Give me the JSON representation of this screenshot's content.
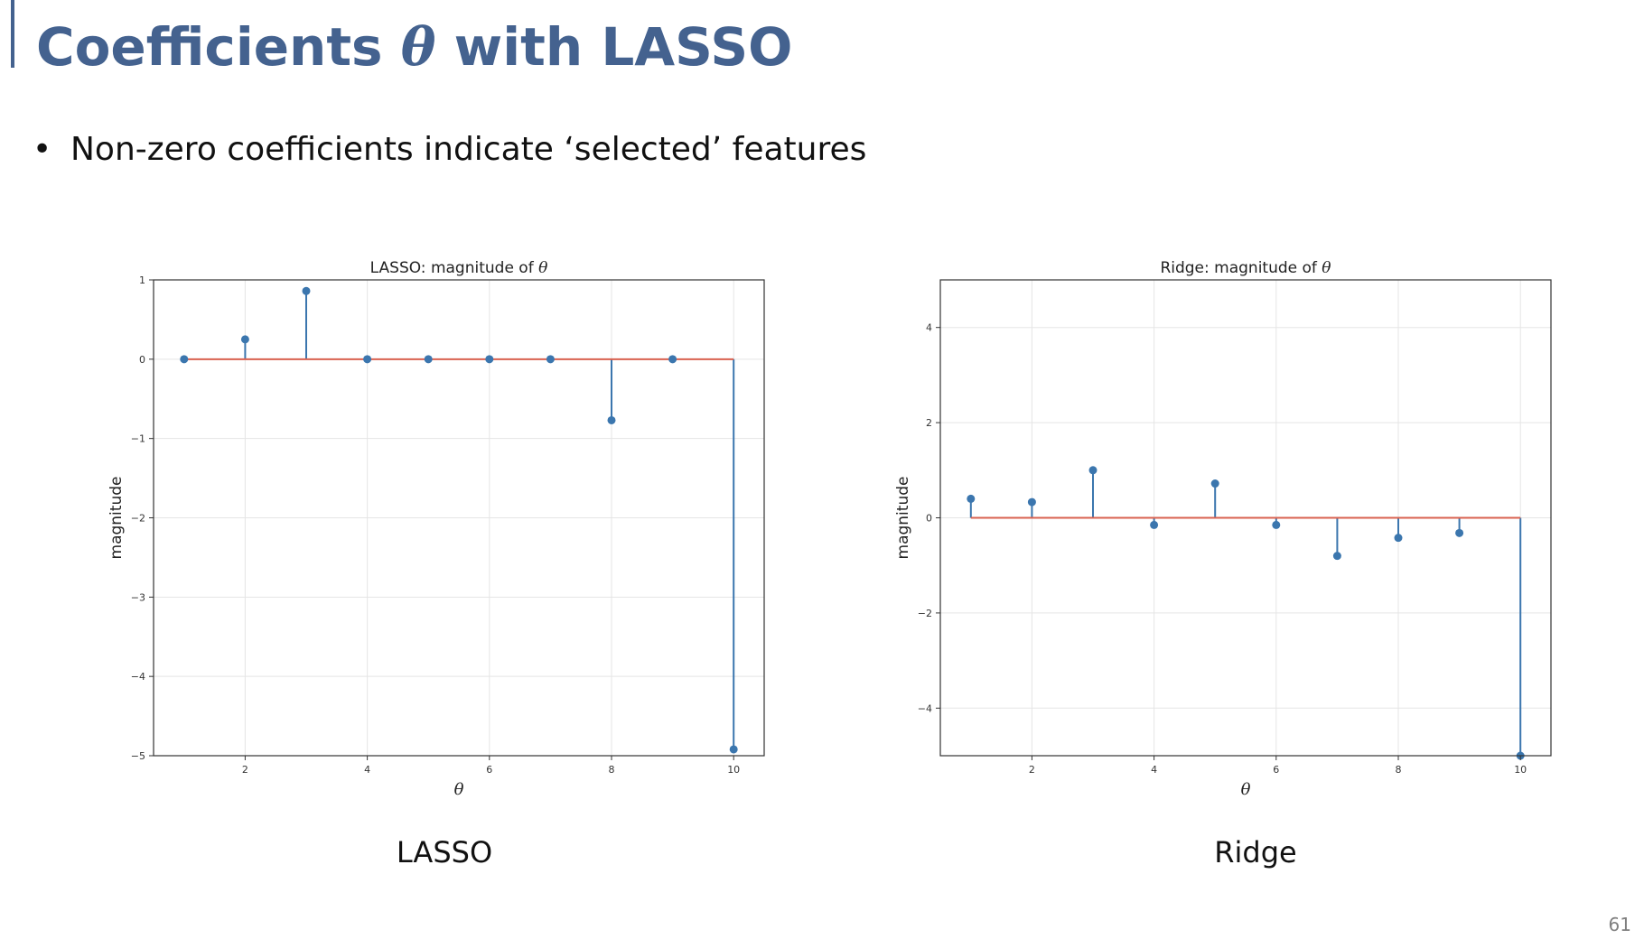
{
  "slide": {
    "title_prefix": "Coefficients ",
    "title_symbol": "θ",
    "title_suffix": " with LASSO",
    "bullet_symbol": "•",
    "bullet": "Non-zero coefficients indicate ‘selected’ features",
    "page_number": "61",
    "colors": {
      "title": "#44628f",
      "stem": "#3b76ae",
      "baseline": "#d9614f",
      "grid": "#e5e5e5"
    }
  },
  "chart_data": [
    {
      "type": "stem",
      "caption": "LASSO",
      "title_prefix": "LASSO: magnitude of ",
      "title_symbol": "θ",
      "xlabel": "θ",
      "ylabel": "magnitude",
      "x": [
        1,
        2,
        3,
        4,
        5,
        6,
        7,
        8,
        9,
        10
      ],
      "values": [
        0,
        0.25,
        0.86,
        0,
        0,
        0,
        0,
        -0.77,
        0,
        -4.92
      ],
      "xlim": [
        0.5,
        10.5
      ],
      "ylim": [
        -5,
        1
      ],
      "xticks": [
        "2",
        "4",
        "6",
        "8",
        "10"
      ],
      "yticks": [
        "1",
        "0",
        "−1",
        "−2",
        "−3",
        "−4",
        "−5"
      ],
      "grid": true
    },
    {
      "type": "stem",
      "caption": "Ridge",
      "title_prefix": "Ridge: magnitude of ",
      "title_symbol": "θ",
      "xlabel": "θ",
      "ylabel": "magnitude",
      "x": [
        1,
        2,
        3,
        4,
        5,
        6,
        7,
        8,
        9,
        10
      ],
      "values": [
        0.4,
        0.33,
        1.0,
        -0.15,
        0.72,
        -0.15,
        -0.8,
        -0.42,
        -0.32,
        -5.0
      ],
      "xlim": [
        0.5,
        10.5
      ],
      "ylim": [
        -5,
        5
      ],
      "xticks": [
        "2",
        "4",
        "6",
        "8",
        "10"
      ],
      "yticks": [
        "4",
        "2",
        "0",
        "−2",
        "−4"
      ],
      "grid": true
    }
  ]
}
